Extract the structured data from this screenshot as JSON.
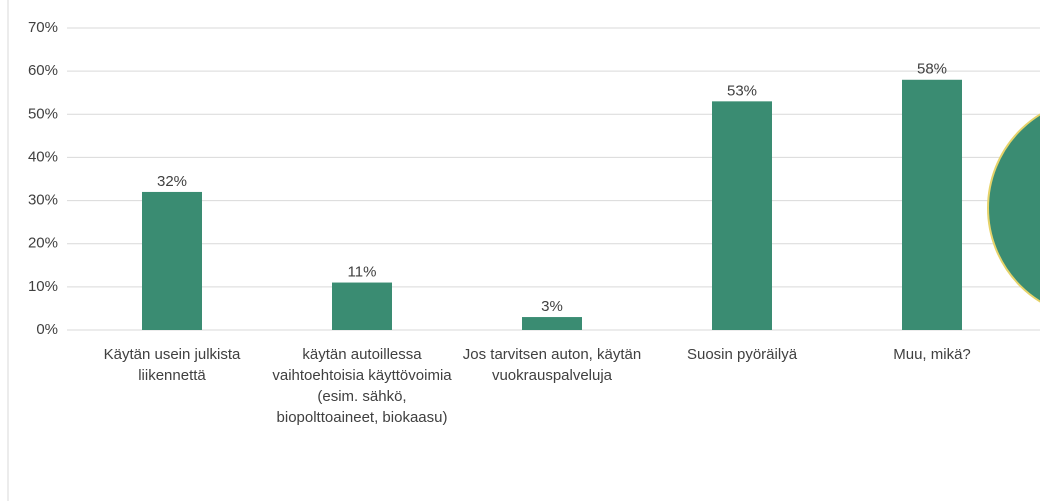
{
  "chart_data": {
    "type": "bar",
    "categories": [
      "Käytän usein julkista liikennettä",
      "käytän autoillessa vaihtoehtoisia käyttövoimia (esim. sähkö, biopolttoaineet, biokaasu)",
      "Jos tarvitsen auton, käytän vuokrauspalveluja",
      "Suosin pyöräilyä",
      "Muu, mikä?"
    ],
    "values": [
      32,
      11,
      3,
      53,
      58
    ],
    "value_labels": [
      "32%",
      "11%",
      "3%",
      "53%",
      "58%"
    ],
    "color": "#3a8c72",
    "ylim": [
      0,
      70
    ],
    "yticks": [
      {
        "value": 0,
        "label": "0%"
      },
      {
        "value": 10,
        "label": "10%"
      },
      {
        "value": 20,
        "label": "20%"
      },
      {
        "value": 30,
        "label": "30%"
      },
      {
        "value": 40,
        "label": "40%"
      },
      {
        "value": 50,
        "label": "50%"
      },
      {
        "value": 60,
        "label": "60%"
      },
      {
        "value": 70,
        "label": "70%"
      }
    ],
    "grid": true
  }
}
